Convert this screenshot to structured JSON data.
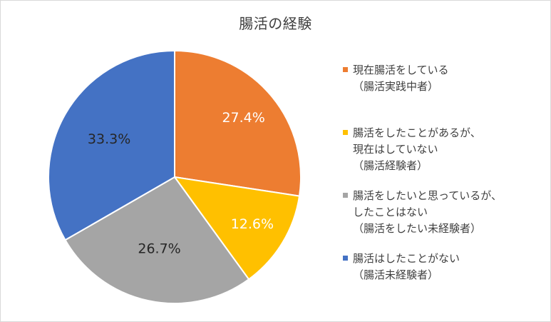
{
  "chart_data": {
    "type": "pie",
    "title": "腸活の経験",
    "categories": [
      "現在腸活をしている\n（腸活実践中者）",
      "腸活をしたことがあるが、\n現在はしていない\n（腸活経験者）",
      "腸活をしたいと思っているが、\nしたことはない\n（腸活をしたい未経験者）",
      "腸活はしたことがない\n（腸活未経験者）"
    ],
    "values": [
      27.4,
      12.6,
      26.7,
      33.3
    ],
    "labels": [
      "27.4%",
      "12.6%",
      "26.7%",
      "33.3%"
    ],
    "colors": [
      "#ed7d31",
      "#ffc000",
      "#a5a5a5",
      "#4472c4"
    ],
    "label_colors": [
      "#ffffff",
      "#ffffff",
      "#262626",
      "#262626"
    ],
    "legend_position": "right"
  }
}
